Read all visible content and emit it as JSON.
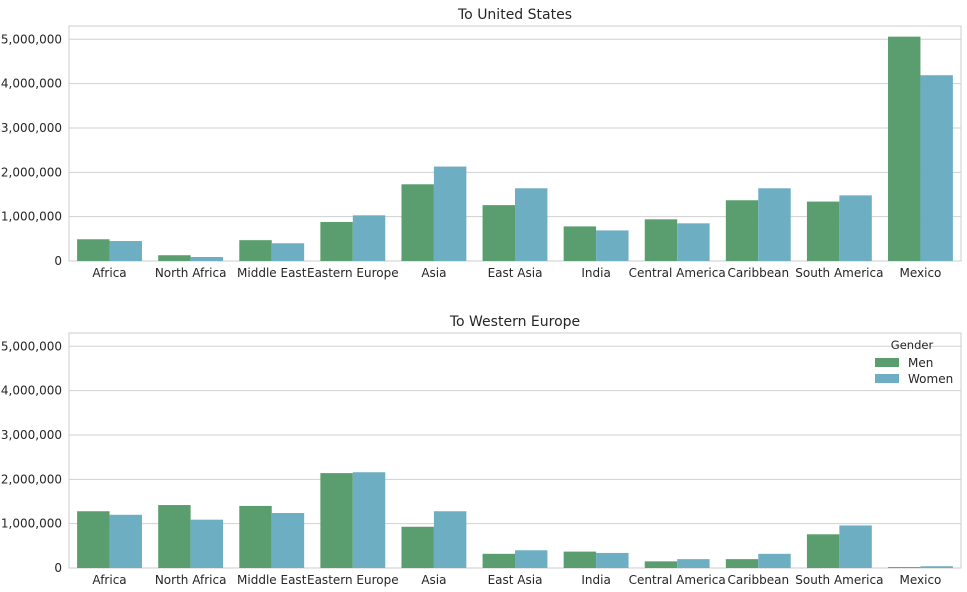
{
  "colors": {
    "men": "#5a9e6f",
    "women": "#6eaec3",
    "grid": "#d0d0d0",
    "axis": "#cccccc"
  },
  "chart_data": [
    {
      "type": "bar",
      "title": "To United States",
      "xlabel": "",
      "ylabel": "",
      "ylim": [
        0,
        5300000
      ],
      "yticks": [
        0,
        1000000,
        2000000,
        3000000,
        4000000,
        5000000
      ],
      "ytick_labels": [
        "0",
        "1,000,000",
        "2,000,000",
        "3,000,000",
        "4,000,000",
        "5,000,000"
      ],
      "grid": true,
      "categories": [
        "Africa",
        "North Africa",
        "Middle East",
        "Eastern Europe",
        "Asia",
        "East Asia",
        "India",
        "Central America",
        "Caribbean",
        "South America",
        "Mexico"
      ],
      "series": [
        {
          "name": "Men",
          "values": [
            490000,
            130000,
            470000,
            880000,
            1730000,
            1260000,
            780000,
            940000,
            1370000,
            1340000,
            5060000
          ]
        },
        {
          "name": "Women",
          "values": [
            450000,
            90000,
            400000,
            1030000,
            2130000,
            1640000,
            690000,
            850000,
            1640000,
            1480000,
            4190000
          ]
        }
      ]
    },
    {
      "type": "bar",
      "title": "To Western Europe",
      "xlabel": "",
      "ylabel": "",
      "ylim": [
        0,
        5300000
      ],
      "yticks": [
        0,
        1000000,
        2000000,
        3000000,
        4000000,
        5000000
      ],
      "ytick_labels": [
        "0",
        "1,000,000",
        "2,000,000",
        "3,000,000",
        "4,000,000",
        "5,000,000"
      ],
      "grid": true,
      "legend": {
        "title": "Gender",
        "placement": "top-right"
      },
      "categories": [
        "Africa",
        "North Africa",
        "Middle East",
        "Eastern Europe",
        "Asia",
        "East Asia",
        "India",
        "Central America",
        "Caribbean",
        "South America",
        "Mexico"
      ],
      "series": [
        {
          "name": "Men",
          "values": [
            1280000,
            1420000,
            1400000,
            2140000,
            930000,
            320000,
            370000,
            150000,
            200000,
            760000,
            20000
          ]
        },
        {
          "name": "Women",
          "values": [
            1200000,
            1090000,
            1240000,
            2160000,
            1280000,
            400000,
            340000,
            200000,
            320000,
            960000,
            40000
          ]
        }
      ]
    }
  ]
}
